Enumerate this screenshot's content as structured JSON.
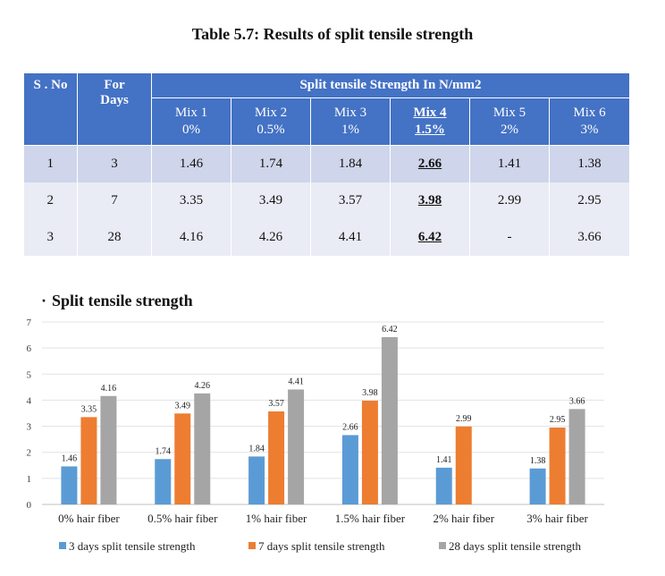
{
  "table": {
    "caption": "Table 5.7: Results of split tensile strength",
    "headers": {
      "sno": "S . No",
      "days": "For Days",
      "group": "Split tensile Strength In N/mm2"
    },
    "mixes": [
      {
        "name": "Mix 1",
        "pct": "0%"
      },
      {
        "name": "Mix 2",
        "pct": "0.5%"
      },
      {
        "name": "Mix 3",
        "pct": "1%"
      },
      {
        "name": "Mix 4",
        "pct": "1.5%"
      },
      {
        "name": "Mix 5",
        "pct": "2%"
      },
      {
        "name": "Mix 6",
        "pct": "3%"
      }
    ],
    "rows": [
      {
        "sno": "1",
        "days": "3",
        "values": [
          "1.46",
          "1.74",
          "1.84",
          "2.66",
          "1.41",
          "1.38"
        ]
      },
      {
        "sno": "2",
        "days": "7",
        "values": [
          "3.35",
          "3.49",
          "3.57",
          "3.98",
          "2.99",
          "2.95"
        ]
      },
      {
        "sno": "3",
        "days": "28",
        "values": [
          "4.16",
          "4.26",
          "4.41",
          "6.42",
          "-",
          "3.66"
        ]
      }
    ]
  },
  "chart_title_bullet": "·",
  "chart_data": {
    "type": "bar",
    "title": "Split tensile strength",
    "categories": [
      "0% hair fiber",
      "0.5% hair fiber",
      "1% hair fiber",
      "1.5% hair fiber",
      "2% hair fiber",
      "3% hair fiber"
    ],
    "series": [
      {
        "name": "3 days split tensile strength",
        "color": "#5b9bd5",
        "values": [
          1.46,
          1.74,
          1.84,
          2.66,
          1.41,
          1.38
        ]
      },
      {
        "name": "7 days split tensile strength",
        "color": "#ed7d31",
        "values": [
          3.35,
          3.49,
          3.57,
          3.98,
          2.99,
          2.95
        ]
      },
      {
        "name": "28 days split tensile strength",
        "color": "#a5a5a5",
        "values": [
          4.16,
          4.26,
          4.41,
          6.42,
          null,
          3.66
        ]
      }
    ],
    "ylim": [
      0,
      7
    ],
    "yticks": [
      0,
      1,
      2,
      3,
      4,
      5,
      6,
      7
    ],
    "grid": true,
    "legend": "bottom"
  }
}
